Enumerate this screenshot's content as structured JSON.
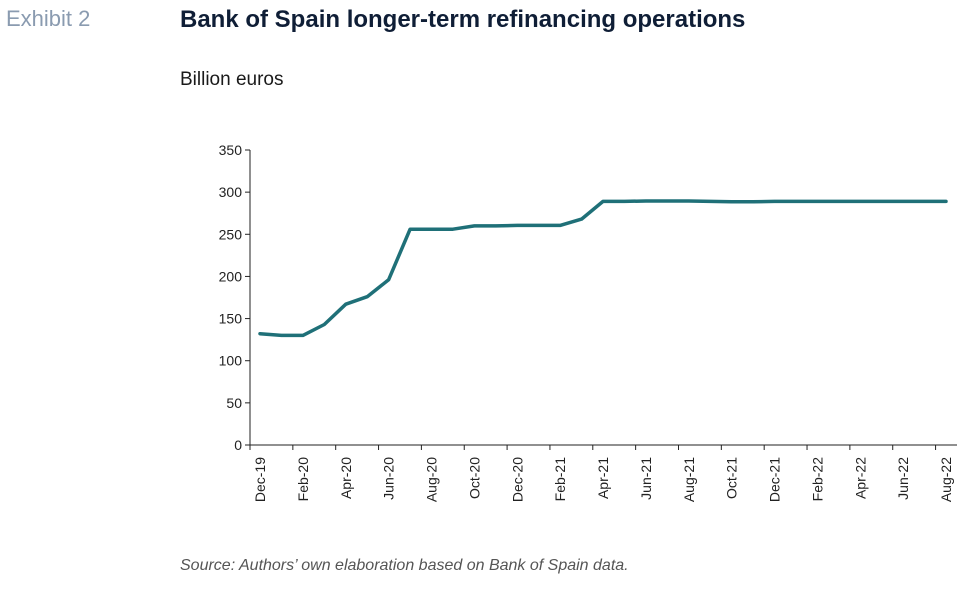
{
  "exhibit_label": "Exhibit 2",
  "title": "Bank of Spain longer-term refinancing operations",
  "unit_label": "Billion euros",
  "source": "Source: Authors’ own elaboration based on Bank of Spain data.",
  "chart_data": {
    "type": "line",
    "title": "Bank of Spain longer-term refinancing operations",
    "ylabel": "Billion euros",
    "xlabel": "",
    "ylim": [
      0,
      350
    ],
    "yticks": [
      0,
      50,
      100,
      150,
      200,
      250,
      300,
      350
    ],
    "grid": false,
    "line_color": "#1f7078",
    "x": [
      "Dec-19",
      "Jan-20",
      "Feb-20",
      "Mar-20",
      "Apr-20",
      "May-20",
      "Jun-20",
      "Jul-20",
      "Aug-20",
      "Sep-20",
      "Oct-20",
      "Nov-20",
      "Dec-20",
      "Jan-21",
      "Feb-21",
      "Mar-21",
      "Apr-21",
      "May-21",
      "Jun-21",
      "Jul-21",
      "Aug-21",
      "Sep-21",
      "Oct-21",
      "Nov-21",
      "Dec-21",
      "Jan-22",
      "Feb-22",
      "Mar-22",
      "Apr-22",
      "May-22",
      "Jun-22",
      "Jul-22",
      "Aug-22"
    ],
    "tick_labels": [
      "Dec-19",
      "Feb-20",
      "Apr-20",
      "Jun-20",
      "Aug-20",
      "Oct-20",
      "Dec-20",
      "Feb-21",
      "Apr-21",
      "Jun-21",
      "Aug-21",
      "Oct-21",
      "Dec-21",
      "Feb-22",
      "Apr-22",
      "Jun-22",
      "Aug-22"
    ],
    "series": [
      {
        "values": [
          132,
          130,
          130,
          143,
          167,
          176,
          196,
          256,
          256,
          256,
          260,
          260,
          260.5,
          260.5,
          260.5,
          268,
          289,
          289,
          289.5,
          289.5,
          289.5,
          289,
          288.5,
          288.5,
          289,
          289,
          289,
          289,
          289,
          289,
          289,
          289,
          289
        ]
      }
    ]
  }
}
